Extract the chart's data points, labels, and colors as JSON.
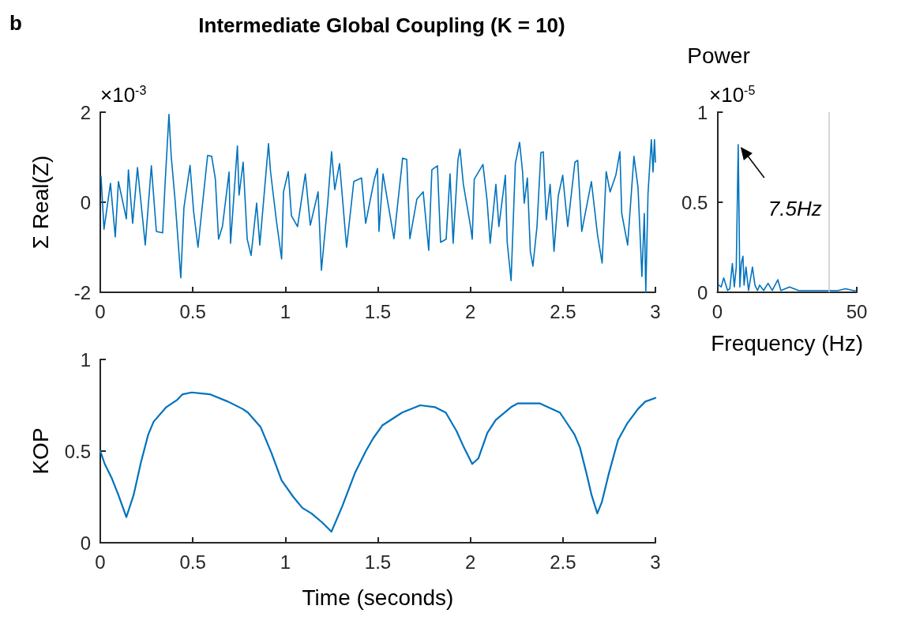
{
  "chart_data": [
    {
      "type": "line",
      "title": "Intermediate Global Coupling (K = 10)",
      "ylabel": "Σ Real(Z)",
      "annotations": [
        "b",
        "×10$^{-3}$"
      ],
      "xlim": [
        0,
        3
      ],
      "xticks": [
        0,
        0.5,
        1,
        1.5,
        2,
        2.5,
        3
      ],
      "ylim": [
        -2,
        2
      ],
      "yticks": [
        -2,
        0,
        2
      ],
      "marker": "none",
      "grid": false,
      "series": [
        {
          "color": "#0072bd",
          "x": [
            0.004,
            0.02,
            0.055,
            0.081,
            0.098,
            0.141,
            0.152,
            0.175,
            0.201,
            0.243,
            0.276,
            0.303,
            0.337,
            0.35,
            0.371,
            0.383,
            0.404,
            0.422,
            0.435,
            0.452,
            0.485,
            0.504,
            0.528,
            0.58,
            0.602,
            0.622,
            0.639,
            0.66,
            0.696,
            0.704,
            0.741,
            0.75,
            0.772,
            0.794,
            0.815,
            0.845,
            0.862,
            0.909,
            0.92,
            0.952,
            0.98,
            0.99,
            1.016,
            1.033,
            1.066,
            1.108,
            1.135,
            1.177,
            1.195,
            1.229,
            1.25,
            1.267,
            1.293,
            1.331,
            1.37,
            1.412,
            1.434,
            1.481,
            1.498,
            1.506,
            1.528,
            1.587,
            1.634,
            1.656,
            1.673,
            1.711,
            1.745,
            1.775,
            1.792,
            1.822,
            1.839,
            1.869,
            1.89,
            1.907,
            1.933,
            1.944,
            1.962,
            2.001,
            2.01,
            2.021,
            2.068,
            2.09,
            2.107,
            2.138,
            2.154,
            2.189,
            2.199,
            2.22,
            2.243,
            2.266,
            2.282,
            2.291,
            2.308,
            2.324,
            2.338,
            2.36,
            2.381,
            2.394,
            2.41,
            2.431,
            2.452,
            2.475,
            2.499,
            2.526,
            2.565,
            2.58,
            2.602,
            2.654,
            2.687,
            2.712,
            2.734,
            2.755,
            2.786,
            2.808,
            2.818,
            2.85,
            2.884,
            2.906,
            2.927,
            2.94,
            2.948,
            2.96,
            2.978,
            2.987,
            2.995,
            3.0
          ],
          "values": [
            0.58,
            -0.6,
            0.42,
            -0.77,
            0.46,
            -0.37,
            0.72,
            -0.47,
            0.77,
            -0.95,
            0.81,
            -0.65,
            -0.68,
            0.4,
            1.95,
            1.04,
            0.05,
            -0.95,
            -1.68,
            -0.12,
            0.82,
            -0.19,
            -1.0,
            1.04,
            1.02,
            0.51,
            -0.82,
            -0.54,
            0.67,
            -0.91,
            1.25,
            0.16,
            0.89,
            -0.82,
            -1.18,
            -0.02,
            -0.95,
            1.3,
            0.68,
            -0.42,
            -1.26,
            0.23,
            0.68,
            -0.3,
            -0.54,
            0.63,
            -0.51,
            0.23,
            -1.51,
            -0.02,
            1.12,
            0.28,
            0.86,
            -1.0,
            0.46,
            0.54,
            -0.47,
            0.51,
            0.75,
            -0.65,
            0.63,
            -0.81,
            0.98,
            0.95,
            -0.81,
            0.07,
            0.23,
            -1.07,
            0.72,
            0.81,
            -0.89,
            -0.82,
            0.63,
            -0.91,
            0.95,
            1.18,
            0.4,
            -0.54,
            -0.82,
            0.51,
            0.84,
            0.05,
            -0.91,
            0.4,
            -0.54,
            0.6,
            -0.89,
            -1.74,
            0.86,
            1.33,
            0.68,
            -0.02,
            0.54,
            -1.09,
            -1.42,
            -0.54,
            1.1,
            1.12,
            -0.39,
            0.4,
            -1.09,
            0.14,
            0.6,
            -0.54,
            0.89,
            0.93,
            -0.65,
            0.46,
            -0.72,
            -1.35,
            0.68,
            0.23,
            0.6,
            1.12,
            -0.25,
            -0.95,
            1.02,
            0.33,
            -1.65,
            -0.25,
            -2.0,
            0.19,
            1.39,
            0.67,
            1.39,
            0.89
          ]
        }
      ]
    },
    {
      "type": "line",
      "ylabel": "Power",
      "xlabel": "Frequency (Hz)",
      "annotations": [
        "×10$^{-5}$",
        {
          "text": "7.5Hz",
          "x": 7.5,
          "y": 0.82
        }
      ],
      "xlim": [
        0,
        50
      ],
      "xticks": [
        0,
        50
      ],
      "ylim": [
        0,
        1
      ],
      "yticks": [
        0,
        0.5,
        1
      ],
      "marker": "none",
      "grid": false,
      "ref_lines": [
        {
          "axis": "x",
          "value": 40,
          "color": "#c8c8c8"
        }
      ],
      "series": [
        {
          "color": "#0072bd",
          "x": [
            0.5,
            1.4,
            2.3,
            3.7,
            4.5,
            5.4,
            6.1,
            6.8,
            7.5,
            8.1,
            8.6,
            9.2,
            9.6,
            10.3,
            11.2,
            12.6,
            13.5,
            14.4,
            15.2,
            16.6,
            18.2,
            19.7,
            21.7,
            22.8,
            25.9,
            29.1,
            32.6,
            36.2,
            39.8,
            43.3,
            46.0,
            48.7,
            49.5
          ],
          "values": [
            0.04,
            0.03,
            0.08,
            0.01,
            0.02,
            0.16,
            0.03,
            0.14,
            0.82,
            0.03,
            0.16,
            0.2,
            0.04,
            0.14,
            0.01,
            0.14,
            0.04,
            0.01,
            0.04,
            0.01,
            0.05,
            0.01,
            0.07,
            0.01,
            0.03,
            0.01,
            0.01,
            0.01,
            0.01,
            0.01,
            0.02,
            0.01,
            0.01
          ]
        }
      ]
    },
    {
      "type": "line",
      "xlabel": "Time (seconds)",
      "ylabel": "KOP",
      "xlim": [
        0,
        3
      ],
      "xticks": [
        0,
        0.5,
        1,
        1.5,
        2,
        2.5,
        3
      ],
      "ylim": [
        0,
        1
      ],
      "yticks": [
        0,
        0.5,
        1
      ],
      "marker": "none",
      "grid": false,
      "series": [
        {
          "color": "#0072bd",
          "x": [
            0,
            0.024,
            0.063,
            0.098,
            0.141,
            0.18,
            0.22,
            0.259,
            0.288,
            0.357,
            0.416,
            0.445,
            0.494,
            0.592,
            0.69,
            0.769,
            0.798,
            0.867,
            0.925,
            0.98,
            1.043,
            1.092,
            1.141,
            1.2,
            1.249,
            1.308,
            1.376,
            1.435,
            1.475,
            1.524,
            1.631,
            1.729,
            1.808,
            1.867,
            1.925,
            1.965,
            2.01,
            2.043,
            2.092,
            2.137,
            2.22,
            2.255,
            2.318,
            2.376,
            2.484,
            2.504,
            2.563,
            2.592,
            2.627,
            2.655,
            2.686,
            2.71,
            2.749,
            2.798,
            2.847,
            2.906,
            2.945,
            3.0
          ],
          "values": [
            0.5,
            0.43,
            0.35,
            0.26,
            0.14,
            0.26,
            0.44,
            0.59,
            0.66,
            0.74,
            0.78,
            0.81,
            0.82,
            0.81,
            0.77,
            0.73,
            0.71,
            0.63,
            0.49,
            0.34,
            0.25,
            0.19,
            0.16,
            0.11,
            0.06,
            0.2,
            0.38,
            0.5,
            0.57,
            0.64,
            0.71,
            0.75,
            0.74,
            0.71,
            0.61,
            0.52,
            0.43,
            0.46,
            0.6,
            0.67,
            0.74,
            0.76,
            0.76,
            0.76,
            0.71,
            0.68,
            0.59,
            0.52,
            0.38,
            0.26,
            0.16,
            0.22,
            0.38,
            0.56,
            0.65,
            0.73,
            0.77,
            0.79
          ]
        }
      ]
    }
  ]
}
